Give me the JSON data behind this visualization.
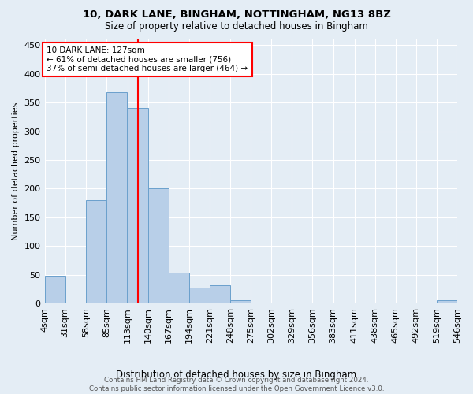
{
  "title1": "10, DARK LANE, BINGHAM, NOTTINGHAM, NG13 8BZ",
  "title2": "Size of property relative to detached houses in Bingham",
  "xlabel": "Distribution of detached houses by size in Bingham",
  "ylabel": "Number of detached properties",
  "bar_color": "#b8cfe8",
  "bar_edge_color": "#6aa0cc",
  "background_color": "#e4edf5",
  "bin_edges": [
    4,
    31,
    58,
    85,
    113,
    140,
    167,
    194,
    221,
    248,
    275,
    302,
    329,
    356,
    383,
    411,
    438,
    465,
    492,
    519,
    546
  ],
  "bin_labels": [
    "4sqm",
    "31sqm",
    "58sqm",
    "85sqm",
    "113sqm",
    "140sqm",
    "167sqm",
    "194sqm",
    "221sqm",
    "248sqm",
    "275sqm",
    "302sqm",
    "329sqm",
    "356sqm",
    "383sqm",
    "411sqm",
    "438sqm",
    "465sqm",
    "492sqm",
    "519sqm",
    "546sqm"
  ],
  "counts": [
    48,
    0,
    180,
    368,
    340,
    200,
    53,
    28,
    31,
    5,
    0,
    0,
    0,
    0,
    0,
    0,
    0,
    0,
    0,
    5
  ],
  "vline_x": 127,
  "annotation_text": "10 DARK LANE: 127sqm\n← 61% of detached houses are smaller (756)\n37% of semi-detached houses are larger (464) →",
  "annotation_box_color": "white",
  "annotation_box_edge_color": "red",
  "vline_color": "red",
  "footer_text": "Contains HM Land Registry data © Crown copyright and database right 2024.\nContains public sector information licensed under the Open Government Licence v3.0.",
  "ylim": [
    0,
    460
  ],
  "yticks": [
    0,
    50,
    100,
    150,
    200,
    250,
    300,
    350,
    400,
    450
  ],
  "grid_color": "#ffffff"
}
